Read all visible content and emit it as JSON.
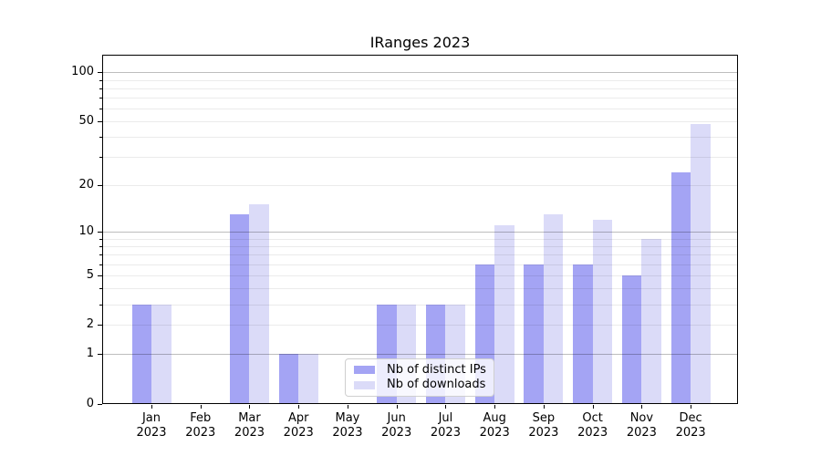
{
  "title": "IRanges 2023",
  "legend": {
    "items": [
      {
        "label": "Nb of distinct IPs",
        "color": "#a4a4f4"
      },
      {
        "label": "Nb of downloads",
        "color": "#dbdbf8"
      }
    ]
  },
  "y_axis": {
    "tick_labels": [
      "100",
      "50",
      "20",
      "10",
      "5",
      "2",
      "1",
      "0"
    ]
  },
  "x_axis": {
    "months": [
      "Jan",
      "Feb",
      "Mar",
      "Apr",
      "May",
      "Jun",
      "Jul",
      "Aug",
      "Sep",
      "Oct",
      "Nov",
      "Dec"
    ],
    "year": "2023"
  },
  "chart_data": {
    "type": "bar",
    "title": "IRanges 2023",
    "categories": [
      "Jan 2023",
      "Feb 2023",
      "Mar 2023",
      "Apr 2023",
      "May 2023",
      "Jun 2023",
      "Jul 2023",
      "Aug 2023",
      "Sep 2023",
      "Oct 2023",
      "Nov 2023",
      "Dec 2023"
    ],
    "series": [
      {
        "name": "Nb of distinct IPs",
        "color": "#a4a4f4",
        "values": [
          3,
          0,
          13,
          1,
          0,
          3,
          3,
          6,
          6,
          6,
          5,
          24
        ]
      },
      {
        "name": "Nb of downloads",
        "color": "#dbdbf8",
        "values": [
          3,
          0,
          15,
          1,
          0,
          3,
          3,
          11,
          13,
          12,
          9,
          48
        ]
      }
    ],
    "yscale": "log1p",
    "ylim": [
      0,
      128
    ],
    "yticks": [
      0,
      1,
      2,
      5,
      10,
      20,
      50,
      100
    ],
    "ytick_major": [
      1,
      10,
      100
    ],
    "ytick_minor": [
      2,
      3,
      4,
      5,
      6,
      7,
      8,
      9,
      20,
      30,
      40,
      50,
      60,
      70,
      80,
      90
    ],
    "grid": "horizontal major+minor gridlines drawn over bars",
    "legend_position": "inside lower-center",
    "bar_colors": {
      "distinct_ips": "#a4a4f4",
      "downloads": "#dbdbf8"
    }
  }
}
